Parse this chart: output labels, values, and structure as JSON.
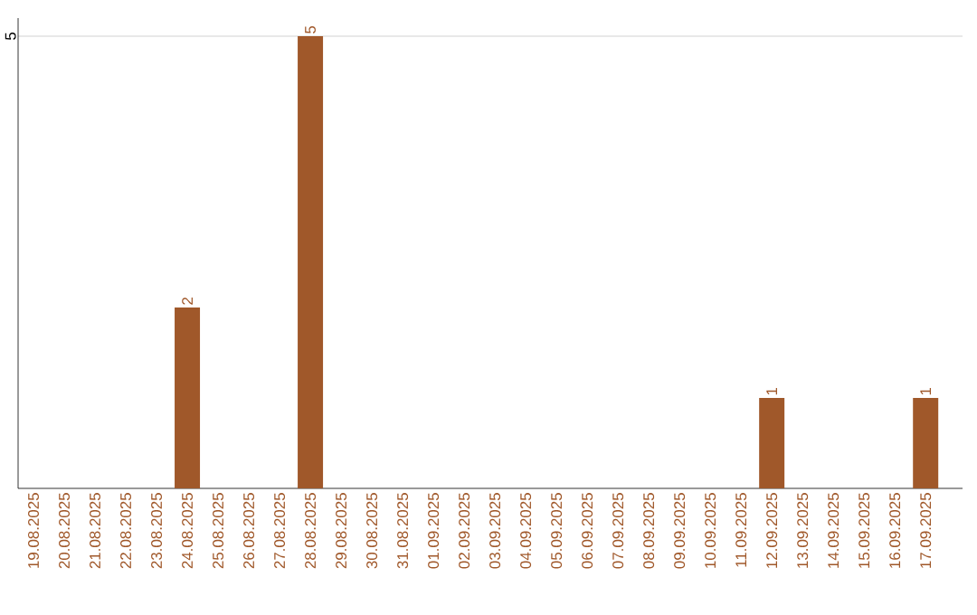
{
  "chart_data": {
    "type": "bar",
    "categories": [
      "19.08.2025",
      "20.08.2025",
      "21.08.2025",
      "22.08.2025",
      "23.08.2025",
      "24.08.2025",
      "25.08.2025",
      "26.08.2025",
      "27.08.2025",
      "28.08.2025",
      "29.08.2025",
      "30.08.2025",
      "31.08.2025",
      "01.09.2025",
      "02.09.2025",
      "03.09.2025",
      "04.09.2025",
      "05.09.2025",
      "06.09.2025",
      "07.09.2025",
      "08.09.2025",
      "09.09.2025",
      "10.09.2025",
      "11.09.2025",
      "12.09.2025",
      "13.09.2025",
      "14.09.2025",
      "15.09.2025",
      "16.09.2025",
      "17.09.2025"
    ],
    "values": [
      0,
      0,
      0,
      0,
      0,
      2,
      0,
      0,
      0,
      5,
      0,
      0,
      0,
      0,
      0,
      0,
      0,
      0,
      0,
      0,
      0,
      0,
      0,
      0,
      1,
      0,
      0,
      0,
      0,
      1
    ],
    "value_labels": [
      null,
      null,
      null,
      null,
      null,
      "2",
      null,
      null,
      null,
      "5",
      null,
      null,
      null,
      null,
      null,
      null,
      null,
      null,
      null,
      null,
      null,
      null,
      null,
      null,
      "1",
      null,
      null,
      null,
      null,
      "1"
    ],
    "color": "#a0582a",
    "ylim": [
      0,
      5.2
    ],
    "yticks": [
      5
    ],
    "grid": "y"
  }
}
